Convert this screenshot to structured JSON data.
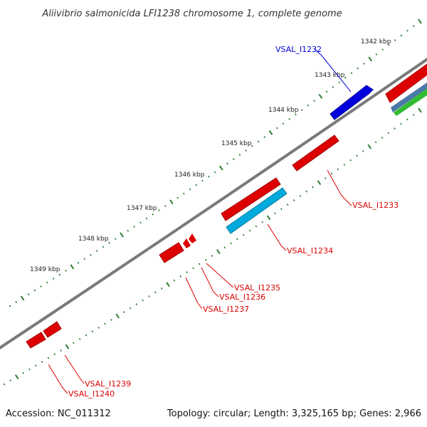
{
  "title": "Aliivibrio salmonicida LFI1238 chromosome 1, complete genome",
  "footer": {
    "accession": "Accession: NC_011312",
    "topology": "Topology: circular; Length: 3,325,165 bp; Genes: 2,966"
  },
  "kbp_labels": [
    "1342 kbp",
    "1343 kbp",
    "1344 kbp",
    "1345 kbp",
    "1346 kbp",
    "1347 kbp",
    "1348 kbp",
    "1349 kbp"
  ],
  "genes": [
    {
      "id": "VSAL_I1232",
      "strand": "outer",
      "color": "#0000dd"
    },
    {
      "id": "VSAL_I1233",
      "strand": "inner",
      "color": "#dd0000"
    },
    {
      "id": "VSAL_I1234",
      "strand": "inner",
      "color": "#dd0000"
    },
    {
      "id": "VSAL_I1235",
      "strand": "inner",
      "color": "#dd0000"
    },
    {
      "id": "VSAL_I1236",
      "strand": "inner",
      "color": "#dd0000"
    },
    {
      "id": "VSAL_I1237",
      "strand": "inner",
      "color": "#dd0000"
    },
    {
      "id": "VSAL_I1239",
      "strand": "inner",
      "color": "#dd0000"
    },
    {
      "id": "VSAL_I1240",
      "strand": "inner",
      "color": "#dd0000"
    }
  ],
  "colors": {
    "backbone": "#7a7a7a",
    "ticks": "#2e7d32",
    "forward": "#0000dd",
    "reverse": "#dd0000",
    "feature_cyan": "#00aadd",
    "feature_green": "#33bb33",
    "feature_steel": "#4a78a8"
  }
}
